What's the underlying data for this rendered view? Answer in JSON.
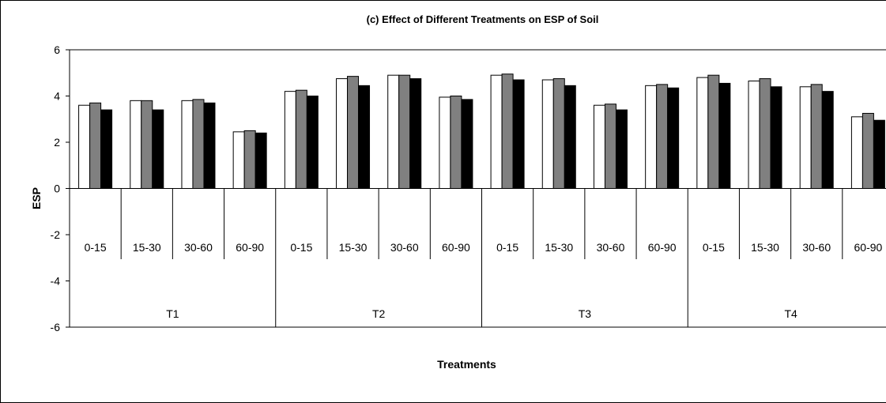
{
  "chart_data": {
    "type": "bar",
    "title": "(c)  Effect of Different Treatments on ESP of Soil",
    "xlabel": "Treatments",
    "ylabel": "ESP",
    "ylim": [
      -6,
      6
    ],
    "yticks": [
      "6",
      "4",
      "2",
      "0",
      "-2",
      "-4",
      "-6"
    ],
    "groups": [
      "T1",
      "T2",
      "T3",
      "T4"
    ],
    "categories": [
      "0-15",
      "15-30",
      "30-60",
      "60-90",
      "0-15",
      "15-30",
      "30-60",
      "60-90",
      "0-15",
      "15-30",
      "30-60",
      "60-90",
      "0-15",
      "15-30",
      "30-60",
      "60-90"
    ],
    "series": [
      {
        "color": "#ffffff",
        "values": [
          3.6,
          3.8,
          3.8,
          2.45,
          4.2,
          4.75,
          4.9,
          3.95,
          4.9,
          4.7,
          3.6,
          4.45,
          4.8,
          4.65,
          4.4,
          3.1
        ]
      },
      {
        "color": "#808080",
        "values": [
          3.7,
          3.8,
          3.85,
          2.5,
          4.25,
          4.85,
          4.9,
          4.0,
          4.95,
          4.75,
          3.65,
          4.5,
          4.9,
          4.75,
          4.5,
          3.25
        ]
      },
      {
        "color": "#000000",
        "values": [
          3.4,
          3.4,
          3.7,
          2.4,
          4.0,
          4.45,
          4.75,
          3.85,
          4.7,
          4.45,
          3.4,
          4.35,
          4.55,
          4.4,
          4.2,
          2.95
        ]
      }
    ],
    "grid": false,
    "legend": "none"
  }
}
